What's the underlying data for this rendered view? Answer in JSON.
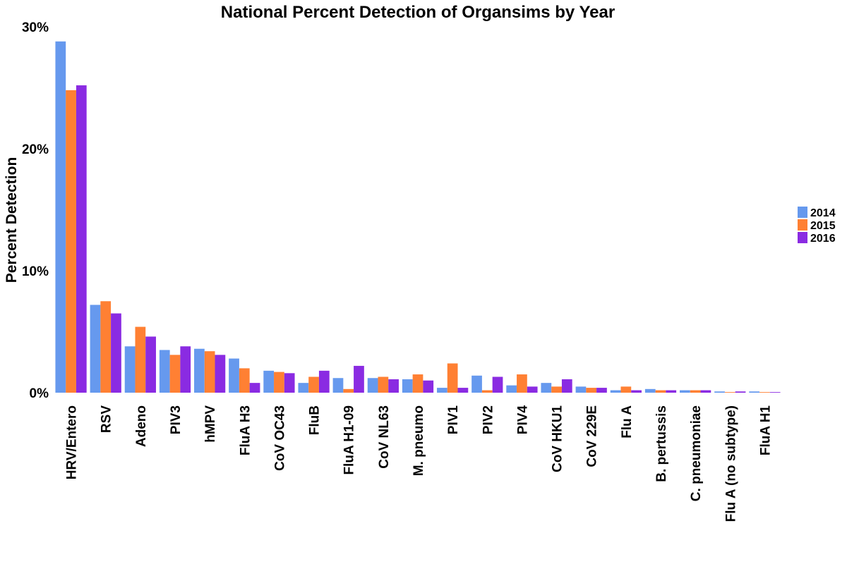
{
  "chart_data": {
    "type": "bar",
    "title": "National Percent Detection of Organsims by Year",
    "xlabel": "",
    "ylabel": "Percent Detection",
    "ylim": [
      0,
      30
    ],
    "yticks": [
      0,
      10,
      20,
      30
    ],
    "ytick_labels": [
      "0%",
      "10%",
      "20%",
      "30%"
    ],
    "grid": false,
    "legend_position": "right",
    "categories": [
      "HRV/Entero",
      "RSV",
      "Adeno",
      "PIV3",
      "hMPV",
      "FluA H3",
      "CoV OC43",
      "FluB",
      "FluA H1-09",
      "CoV NL63",
      "M. pneumo",
      "PIV1",
      "PIV2",
      "PIV4",
      "CoV HKU1",
      "CoV 229E",
      "Flu A",
      "B. pertussis",
      "C. pneumoniae",
      "Flu A (no subtype)",
      "FluA H1"
    ],
    "series": [
      {
        "name": "2014",
        "color": "#6699EE",
        "values": [
          28.8,
          7.2,
          3.8,
          3.5,
          3.6,
          2.8,
          1.8,
          0.8,
          1.2,
          1.2,
          1.1,
          0.4,
          1.4,
          0.6,
          0.8,
          0.5,
          0.2,
          0.3,
          0.2,
          0.1,
          0.1
        ]
      },
      {
        "name": "2015",
        "color": "#FF8033",
        "values": [
          24.8,
          7.5,
          5.4,
          3.1,
          3.4,
          2.0,
          1.7,
          1.3,
          0.3,
          1.3,
          1.5,
          2.4,
          0.2,
          1.5,
          0.5,
          0.4,
          0.5,
          0.2,
          0.2,
          0.05,
          0.05
        ]
      },
      {
        "name": "2016",
        "color": "#8A2BE2",
        "values": [
          25.2,
          6.5,
          4.6,
          3.8,
          3.1,
          0.8,
          1.6,
          1.8,
          2.2,
          1.1,
          1.0,
          0.4,
          1.3,
          0.5,
          1.1,
          0.4,
          0.2,
          0.2,
          0.2,
          0.1,
          0.05
        ]
      }
    ]
  }
}
